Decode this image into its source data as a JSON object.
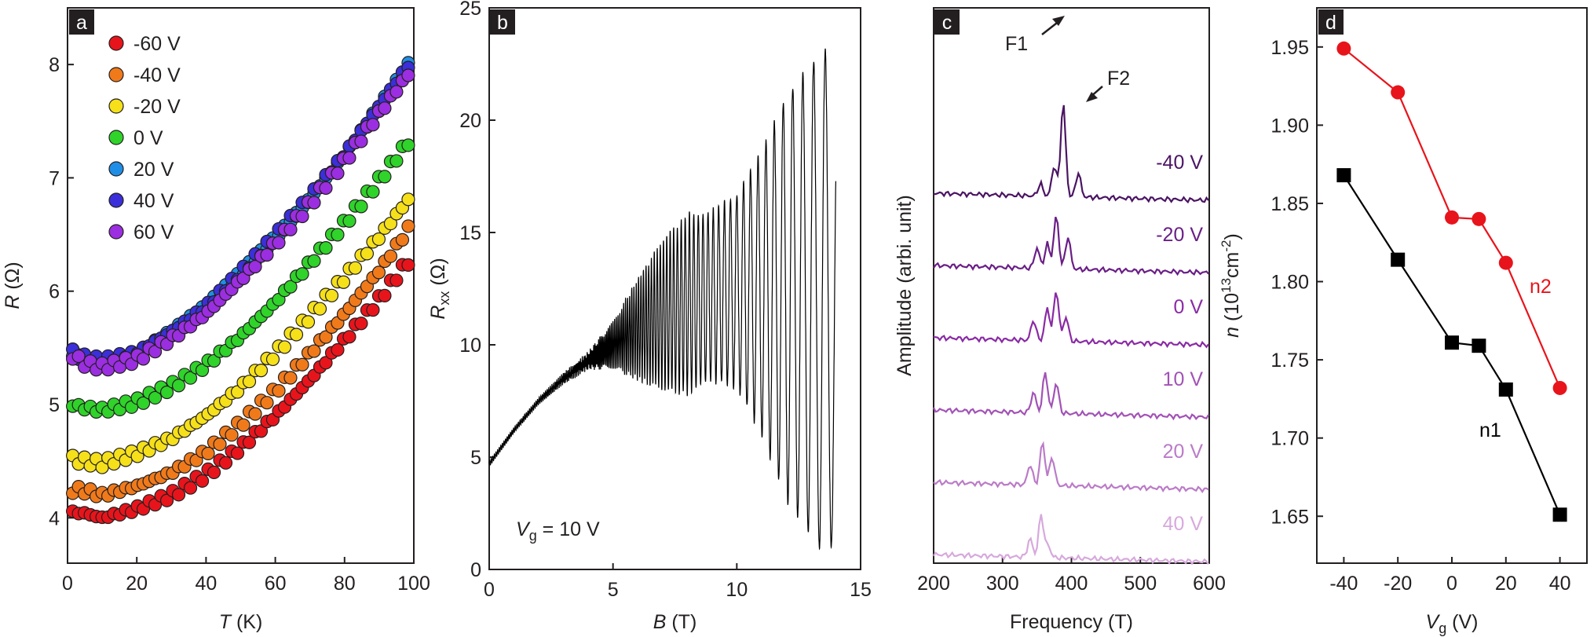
{
  "chart_data": [
    {
      "panel": "a",
      "type": "scatter",
      "xlabel": "T",
      "xunit": "(K)",
      "ylabel": "R",
      "yunit": "(Ω)",
      "xlim": [
        0,
        100
      ],
      "ylim": [
        3.6,
        8.5
      ],
      "xticks": [
        0,
        20,
        40,
        60,
        80,
        100
      ],
      "yticks": [
        4,
        5,
        6,
        7,
        8
      ],
      "xtick_labels": [
        "0",
        "20",
        "40",
        "60",
        "80",
        "100"
      ],
      "ytick_labels": [
        "4",
        "5",
        "6",
        "7",
        "8"
      ],
      "legend_position": "top-left",
      "series": [
        {
          "name": "-60 V",
          "color": "#e8141b",
          "T": [
            1,
            5,
            10,
            20,
            30,
            40,
            50,
            60,
            70,
            80,
            90,
            100
          ],
          "R": [
            4.05,
            4.04,
            4.0,
            4.08,
            4.2,
            4.38,
            4.62,
            4.9,
            5.22,
            5.57,
            5.93,
            6.33
          ]
        },
        {
          "name": "-40 V",
          "color": "#f07a1a",
          "T": [
            1,
            5,
            10,
            20,
            30,
            40,
            50,
            60,
            70,
            80,
            90,
            100
          ],
          "R": [
            4.25,
            4.24,
            4.2,
            4.28,
            4.4,
            4.58,
            4.83,
            5.12,
            5.45,
            5.8,
            6.18,
            6.62
          ]
        },
        {
          "name": "-20 V",
          "color": "#f5e01a",
          "T": [
            1,
            5,
            10,
            20,
            30,
            40,
            50,
            60,
            70,
            80,
            90,
            100
          ],
          "R": [
            4.52,
            4.5,
            4.48,
            4.57,
            4.7,
            4.9,
            5.15,
            5.45,
            5.78,
            6.12,
            6.48,
            6.87
          ]
        },
        {
          "name": "0 V",
          "color": "#2fd32a",
          "T": [
            1,
            5,
            10,
            20,
            30,
            40,
            50,
            60,
            70,
            80,
            90,
            100
          ],
          "R": [
            5.0,
            4.97,
            4.95,
            5.02,
            5.16,
            5.35,
            5.6,
            5.9,
            6.25,
            6.6,
            6.98,
            7.38
          ]
        },
        {
          "name": "20 V",
          "color": "#1f8ee6",
          "T": [
            1,
            5,
            10,
            20,
            30,
            40,
            50,
            60,
            70,
            80,
            90,
            100
          ],
          "R": [
            5.45,
            5.4,
            5.38,
            5.45,
            5.63,
            5.85,
            6.15,
            6.47,
            6.82,
            7.2,
            7.62,
            8.05
          ]
        },
        {
          "name": "40 V",
          "color": "#3a2fd8",
          "T": [
            1,
            5,
            10,
            20,
            30,
            40,
            50,
            60,
            70,
            80,
            90,
            100
          ],
          "R": [
            5.46,
            5.41,
            5.39,
            5.46,
            5.64,
            5.86,
            6.16,
            6.48,
            6.83,
            7.21,
            7.63,
            8.06
          ]
        },
        {
          "name": "60 V",
          "color": "#9b2ee0",
          "T": [
            1,
            5,
            10,
            20,
            30,
            40,
            50,
            60,
            70,
            80,
            90,
            100
          ],
          "R": [
            5.44,
            5.36,
            5.33,
            5.4,
            5.58,
            5.8,
            6.1,
            6.42,
            6.77,
            7.15,
            7.57,
            7.98
          ]
        }
      ]
    },
    {
      "panel": "b",
      "type": "line",
      "xlabel": "B",
      "xunit": "(T)",
      "ylabel": "R",
      "ylabel_sub": "xx",
      "yunit": "(Ω)",
      "xlim": [
        0,
        15
      ],
      "ylim": [
        0,
        25
      ],
      "xticks": [
        0,
        5,
        10,
        15
      ],
      "yticks": [
        0,
        5,
        10,
        15,
        20,
        25
      ],
      "xtick_labels": [
        "0",
        "5",
        "10",
        "15"
      ],
      "ytick_labels": [
        "0",
        "5",
        "10",
        "15",
        "20",
        "25"
      ],
      "annotation": {
        "var": "V",
        "sub": "g",
        "text": " = 10 V"
      },
      "series": [
        {
          "name": "Rxx",
          "color": "#000000",
          "B": [
            0,
            1,
            2,
            3,
            4,
            5,
            6,
            7,
            8,
            9,
            10,
            11,
            12,
            13,
            13.6,
            14
          ],
          "background": [
            4.7,
            6.2,
            7.5,
            8.5,
            9.3,
            10.0,
            10.7,
            11.3,
            11.8,
            12.2,
            12.4,
            12.3,
            12.1,
            12.0,
            11.8,
            11.5
          ],
          "amplitude": [
            0,
            0,
            0.05,
            0.15,
            0.3,
            1.0,
            2.2,
            3.3,
            4.0,
            3.8,
            4.3,
            6.3,
            9.0,
            10.5,
            11.3,
            10.0
          ],
          "frequency_T": 380
        }
      ]
    },
    {
      "panel": "c",
      "type": "line",
      "xlabel": "Frequency (T)",
      "ylabel": "Amplitude (arbi. unit)",
      "xlim": [
        200,
        600
      ],
      "xticks": [
        200,
        300,
        400,
        500,
        600
      ],
      "xtick_labels": [
        "200",
        "300",
        "400",
        "500",
        "600"
      ],
      "annotations": [
        {
          "text": "F1",
          "x": 388
        },
        {
          "text": "F2",
          "x": 410
        }
      ],
      "series": [
        {
          "name": "-40 V",
          "color": "#4b1463",
          "offset": 5,
          "peaks": [
            {
              "f": 355,
              "a": 0.6
            },
            {
              "f": 375,
              "a": 1.5
            },
            {
              "f": 388,
              "a": 4.6
            },
            {
              "f": 410,
              "a": 1.2
            }
          ]
        },
        {
          "name": "-20 V",
          "color": "#6a1e86",
          "offset": 4,
          "peaks": [
            {
              "f": 350,
              "a": 1.0
            },
            {
              "f": 365,
              "a": 1.2
            },
            {
              "f": 378,
              "a": 2.6
            },
            {
              "f": 395,
              "a": 1.6
            }
          ]
        },
        {
          "name": "0 V",
          "color": "#8a2aa5",
          "offset": 3,
          "peaks": [
            {
              "f": 345,
              "a": 1.0
            },
            {
              "f": 365,
              "a": 1.6
            },
            {
              "f": 378,
              "a": 2.5
            },
            {
              "f": 392,
              "a": 1.2
            }
          ]
        },
        {
          "name": "10 V",
          "color": "#a252b6",
          "offset": 2,
          "peaks": [
            {
              "f": 345,
              "a": 1.0
            },
            {
              "f": 362,
              "a": 2.0
            },
            {
              "f": 378,
              "a": 1.5
            }
          ]
        },
        {
          "name": "20 V",
          "color": "#bb7bc8",
          "offset": 1,
          "peaks": [
            {
              "f": 340,
              "a": 1.0
            },
            {
              "f": 358,
              "a": 2.1
            },
            {
              "f": 372,
              "a": 1.4
            }
          ]
        },
        {
          "name": "40 V",
          "color": "#d7a9dd",
          "offset": 0,
          "peaks": [
            {
              "f": 340,
              "a": 0.9
            },
            {
              "f": 356,
              "a": 2.1
            },
            {
              "f": 366,
              "a": 0.6
            }
          ]
        }
      ]
    },
    {
      "panel": "d",
      "type": "line",
      "xlabel": "V",
      "xlabel_sub": "g",
      "xunit": "(V)",
      "ylabel": "n",
      "yunit_pre": "(10",
      "yunit_sup": "13",
      "yunit_mid": "cm",
      "yunit_sup2": "-2",
      "yunit_post": ")",
      "xlim": [
        -50,
        50
      ],
      "ylim": [
        1.62,
        1.975
      ],
      "xticks": [
        -40,
        -20,
        0,
        20,
        40
      ],
      "xtick_labels": [
        "-40",
        "-20",
        "0",
        "20",
        "40"
      ],
      "yticks": [
        1.65,
        1.7,
        1.75,
        1.8,
        1.85,
        1.9,
        1.95
      ],
      "ytick_labels": [
        "1.65",
        "1.70",
        "1.75",
        "1.80",
        "1.85",
        "1.90",
        "1.95"
      ],
      "series": [
        {
          "name": "n2",
          "color": "#e8141b",
          "marker": "circle",
          "x": [
            -40,
            -20,
            0,
            10,
            20,
            40
          ],
          "y": [
            1.949,
            1.921,
            1.841,
            1.84,
            1.812,
            1.732
          ]
        },
        {
          "name": "n1",
          "color": "#000000",
          "marker": "square",
          "x": [
            -40,
            -20,
            0,
            10,
            20,
            40
          ],
          "y": [
            1.868,
            1.814,
            1.761,
            1.759,
            1.731,
            1.651
          ]
        }
      ]
    }
  ]
}
